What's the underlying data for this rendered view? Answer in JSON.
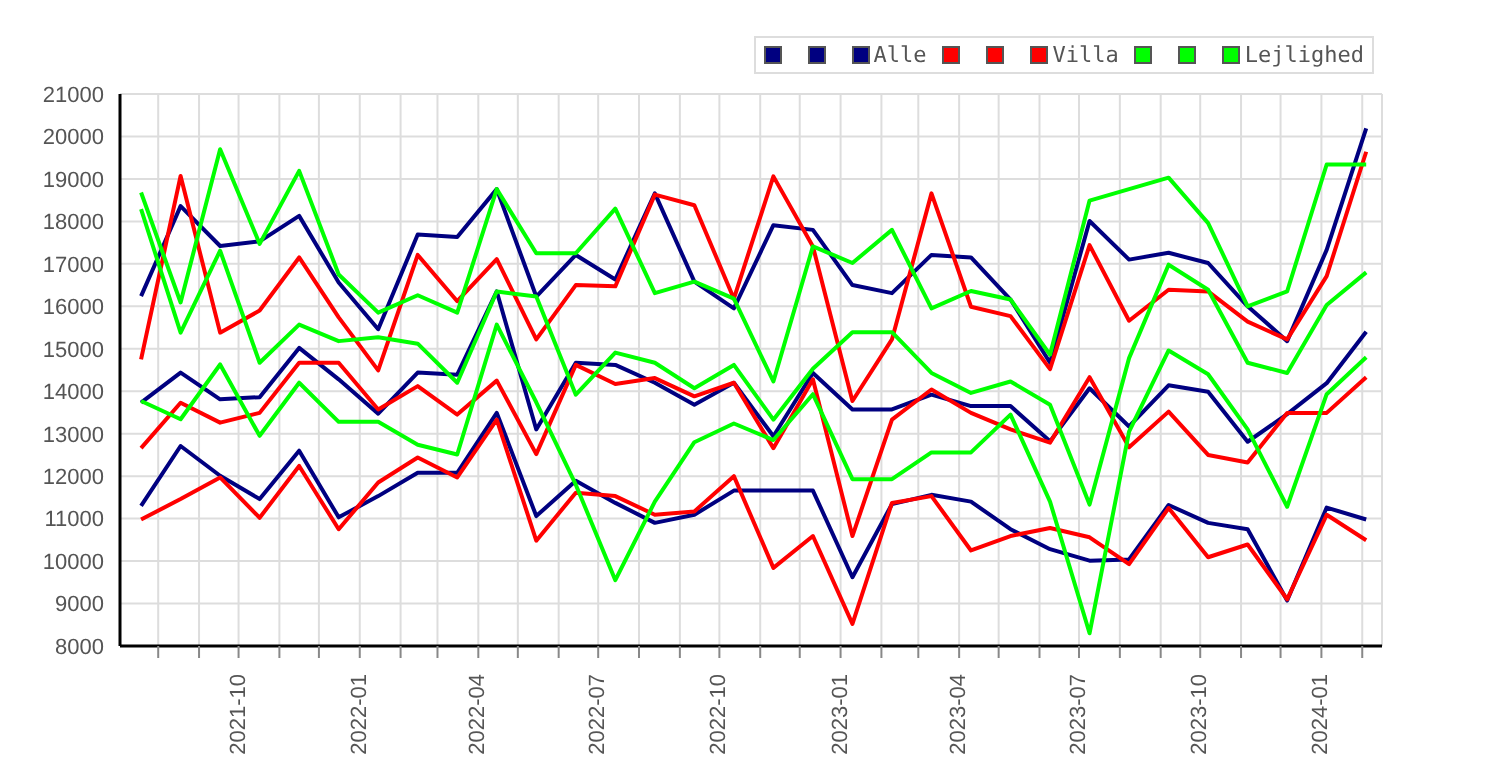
{
  "chart_data": {
    "type": "line",
    "x": [
      "2021-07-19",
      "2021-08-18",
      "2021-09-17",
      "2021-10-17",
      "2021-11-16",
      "2021-12-16",
      "2022-01-15",
      "2022-02-14",
      "2022-03-16",
      "2022-04-15",
      "2022-05-15",
      "2022-06-14",
      "2022-07-14",
      "2022-08-13",
      "2022-09-12",
      "2022-10-12",
      "2022-11-11",
      "2022-12-11",
      "2023-01-10",
      "2023-02-09",
      "2023-03-11",
      "2023-04-10",
      "2023-05-10",
      "2023-06-09",
      "2023-07-09",
      "2023-08-08",
      "2023-09-07",
      "2023-10-07",
      "2023-11-06",
      "2023-12-06",
      "2024-01-05",
      "2024-02-04"
    ],
    "series": [
      {
        "color": "#000080",
        "values": [
          16240,
          18360,
          17420,
          17530,
          18130,
          16560,
          15460,
          17690,
          17630,
          18760,
          16230,
          17210,
          16630,
          18660,
          16580,
          15950,
          17910,
          17800,
          16500,
          16310,
          17210,
          17150,
          16160,
          14670,
          18010,
          17100,
          17260,
          17020,
          16000,
          15180,
          17330,
          20190
        ]
      },
      {
        "color": "#000080",
        "values": [
          13730,
          14440,
          13810,
          13860,
          15020,
          14280,
          13470,
          14440,
          14390,
          16350,
          13100,
          14670,
          14620,
          14200,
          13680,
          14200,
          12940,
          14430,
          13570,
          13570,
          13920,
          13650,
          13650,
          12820,
          14070,
          13170,
          14140,
          13990,
          12810,
          13460,
          14190,
          15400
        ]
      },
      {
        "name": "Alle",
        "color": "#000080",
        "values": [
          11300,
          12710,
          12010,
          11460,
          12600,
          11030,
          11530,
          12080,
          12080,
          13490,
          11060,
          11890,
          11370,
          10900,
          11090,
          11660,
          11660,
          11660,
          9620,
          11340,
          11560,
          11400,
          10750,
          10280,
          10010,
          10040,
          11320,
          10900,
          10750,
          9070,
          11260,
          10980
        ]
      },
      {
        "color": "#ff0000",
        "values": [
          14750,
          19070,
          15380,
          15900,
          17150,
          15740,
          14490,
          17210,
          16120,
          17110,
          15220,
          16500,
          16470,
          18630,
          18380,
          16180,
          19060,
          17410,
          13770,
          15220,
          18660,
          15990,
          15770,
          14520,
          17440,
          15660,
          16390,
          16350,
          15640,
          15220,
          16710,
          19640
        ]
      },
      {
        "color": "#ff0000",
        "values": [
          12660,
          13730,
          13260,
          13490,
          14670,
          14670,
          13570,
          14120,
          13450,
          14250,
          12520,
          14620,
          14170,
          14310,
          13880,
          14200,
          12660,
          14280,
          10590,
          13330,
          14040,
          13490,
          13100,
          12790,
          14330,
          12680,
          13520,
          12500,
          12320,
          13490,
          13490,
          14330
        ]
      },
      {
        "name": "Villa",
        "color": "#ff0000",
        "values": [
          10980,
          11460,
          11970,
          11020,
          12240,
          10750,
          11850,
          12440,
          11970,
          13330,
          10480,
          11610,
          11530,
          11090,
          11170,
          12000,
          9840,
          10590,
          8520,
          11370,
          11530,
          10250,
          10590,
          10780,
          10560,
          9930,
          11250,
          10090,
          10390,
          9100,
          11090,
          10490
        ]
      },
      {
        "color": "#00ff00",
        "values": [
          18680,
          16090,
          19700,
          17470,
          19190,
          16750,
          15850,
          16260,
          15850,
          18760,
          17250,
          17250,
          18300,
          16310,
          16580,
          16180,
          14230,
          17410,
          17020,
          17800,
          15950,
          16360,
          16160,
          14860,
          18490,
          18760,
          19030,
          17960,
          16000,
          16350,
          19340,
          19340
        ]
      },
      {
        "color": "#00ff00",
        "values": [
          18290,
          15380,
          17310,
          14670,
          15570,
          15180,
          15270,
          15120,
          14200,
          16350,
          16230,
          13920,
          14910,
          14670,
          14070,
          14620,
          13330,
          14530,
          15390,
          15390,
          14430,
          13960,
          14230,
          13680,
          11330,
          14780,
          16980,
          16390,
          14670,
          14430,
          16030,
          16800
        ]
      },
      {
        "name": "Lejlighed",
        "color": "#00ff00",
        "values": [
          13770,
          13340,
          14630,
          12950,
          14200,
          13280,
          13280,
          12740,
          12510,
          15570,
          13740,
          11800,
          9550,
          11400,
          12800,
          13240,
          12850,
          13930,
          11930,
          11930,
          12560,
          12560,
          13450,
          11400,
          8300,
          13050,
          14960,
          14400,
          13100,
          11280,
          13930,
          14800
        ]
      }
    ],
    "xlim": [
      "2021-07-03",
      "2024-02-16"
    ],
    "xticks": [
      {
        "value": "2021-08",
        "label": null
      },
      {
        "value": "2021-09",
        "label": null
      },
      "2021-10",
      {
        "value": "2021-11",
        "label": null
      },
      {
        "value": "2021-12",
        "label": null
      },
      "2022-01",
      {
        "value": "2022-02",
        "label": null
      },
      {
        "value": "2022-03",
        "label": null
      },
      "2022-04",
      {
        "value": "2022-05",
        "label": null
      },
      {
        "value": "2022-06",
        "label": null
      },
      "2022-07",
      {
        "value": "2022-08",
        "label": null
      },
      {
        "value": "2022-09",
        "label": null
      },
      "2022-10",
      {
        "value": "2022-11",
        "label": null
      },
      {
        "value": "2022-12",
        "label": null
      },
      "2023-01",
      {
        "value": "2023-02",
        "label": null
      },
      {
        "value": "2023-03",
        "label": null
      },
      "2023-04",
      {
        "value": "2023-05",
        "label": null
      },
      {
        "value": "2023-06",
        "label": null
      },
      "2023-07",
      {
        "value": "2023-08",
        "label": null
      },
      {
        "value": "2023-09",
        "label": null
      },
      "2023-10",
      {
        "value": "2023-11",
        "label": null
      },
      {
        "value": "2023-12",
        "label": null
      },
      "2024-01",
      {
        "value": "2024-02",
        "label": null
      }
    ],
    "ylim": [
      8000,
      21000
    ],
    "yticks": [
      8000,
      9000,
      10000,
      11000,
      12000,
      13000,
      14000,
      15000,
      16000,
      17000,
      18000,
      19000,
      20000,
      21000
    ],
    "grid": true,
    "legend": "top right"
  }
}
